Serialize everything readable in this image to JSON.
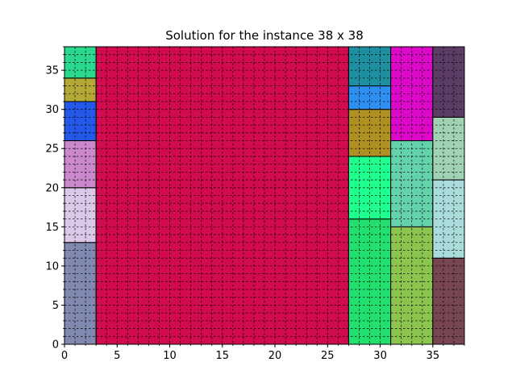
{
  "chart_data": {
    "type": "heatmap",
    "title": "Solution for the instance 38 x 38",
    "xlabel": "",
    "ylabel": "",
    "xlim": [
      0,
      38
    ],
    "ylim": [
      0,
      38
    ],
    "xticks": [
      0,
      5,
      10,
      15,
      20,
      25,
      30,
      35
    ],
    "yticks": [
      0,
      5,
      10,
      15,
      20,
      25,
      30,
      35
    ],
    "grid": true,
    "grid_step": 1,
    "legend": "none",
    "rectangles": [
      {
        "x": 0,
        "y": 0,
        "w": 3,
        "h": 13,
        "color": "#8089b0"
      },
      {
        "x": 0,
        "y": 13,
        "w": 3,
        "h": 7,
        "color": "#dcc8e8"
      },
      {
        "x": 0,
        "y": 20,
        "w": 3,
        "h": 6,
        "color": "#cc88cc"
      },
      {
        "x": 0,
        "y": 26,
        "w": 3,
        "h": 5,
        "color": "#2358e8"
      },
      {
        "x": 0,
        "y": 31,
        "w": 3,
        "h": 3,
        "color": "#b4a836"
      },
      {
        "x": 0,
        "y": 34,
        "w": 3,
        "h": 4,
        "color": "#2ad98e"
      },
      {
        "x": 3,
        "y": 0,
        "w": 24,
        "h": 38,
        "color": "#d20a4e"
      },
      {
        "x": 27,
        "y": 0,
        "w": 4,
        "h": 16,
        "color": "#22e070"
      },
      {
        "x": 27,
        "y": 16,
        "w": 4,
        "h": 8,
        "color": "#1eff8e"
      },
      {
        "x": 27,
        "y": 24,
        "w": 4,
        "h": 6,
        "color": "#b09022"
      },
      {
        "x": 27,
        "y": 30,
        "w": 4,
        "h": 3,
        "color": "#2d8ff0"
      },
      {
        "x": 27,
        "y": 33,
        "w": 4,
        "h": 5,
        "color": "#1e8fa0"
      },
      {
        "x": 31,
        "y": 0,
        "w": 4,
        "h": 15,
        "color": "#8cc450"
      },
      {
        "x": 31,
        "y": 15,
        "w": 4,
        "h": 11,
        "color": "#64d2aa"
      },
      {
        "x": 31,
        "y": 26,
        "w": 4,
        "h": 12,
        "color": "#dc0ac8"
      },
      {
        "x": 35,
        "y": 0,
        "w": 3,
        "h": 11,
        "color": "#784652"
      },
      {
        "x": 35,
        "y": 11,
        "w": 3,
        "h": 10,
        "color": "#aadcdc"
      },
      {
        "x": 35,
        "y": 21,
        "w": 3,
        "h": 8,
        "color": "#a0d2b4"
      },
      {
        "x": 35,
        "y": 29,
        "w": 3,
        "h": 9,
        "color": "#5a3c64"
      }
    ]
  }
}
